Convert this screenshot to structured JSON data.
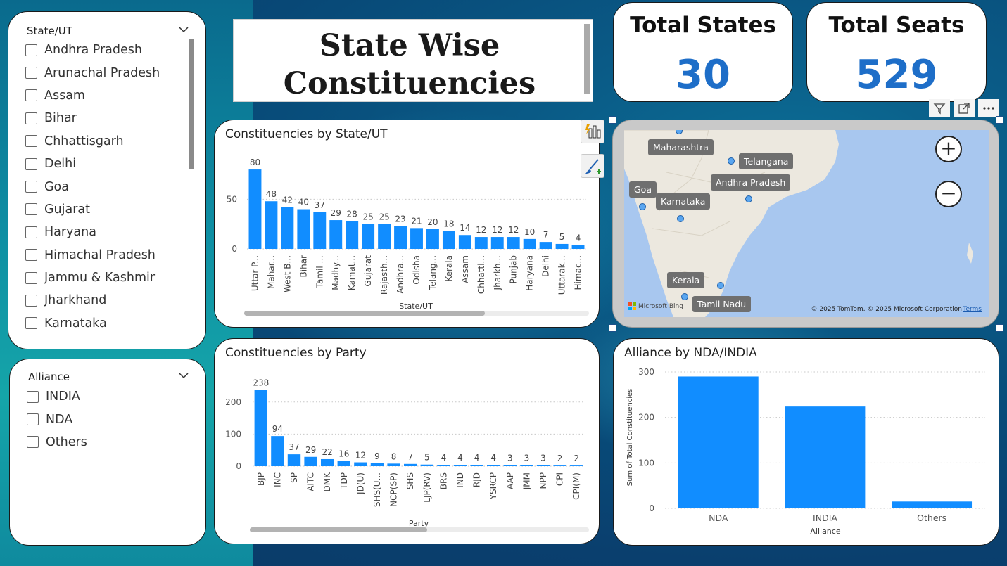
{
  "title": "State Wise Constituencies",
  "title_lines": [
    "State Wise",
    "Constituencies"
  ],
  "kpis": {
    "states": {
      "label": "Total States",
      "value": "30"
    },
    "seats": {
      "label": "Total Seats",
      "value": "529"
    }
  },
  "state_slicer": {
    "title": "State/UT",
    "items": [
      "Andhra Pradesh",
      "Arunachal Pradesh",
      "Assam",
      "Bihar",
      "Chhattisgarh",
      "Delhi",
      "Goa",
      "Gujarat",
      "Haryana",
      "Himachal Pradesh",
      "Jammu & Kashmir",
      "Jharkhand",
      "Karnataka"
    ]
  },
  "alliance_slicer": {
    "title": "Alliance",
    "items": [
      "INDIA",
      "NDA",
      "Others"
    ]
  },
  "map": {
    "labels": [
      "Maharashtra",
      "Telangana",
      "Andhra Pradesh",
      "Goa",
      "Karnataka",
      "Kerala",
      "Tamil Nadu"
    ],
    "copyright": "© 2025 TomTom, © 2025 Microsoft Corporation",
    "terms": "Terms",
    "logo": "Microsoft Bing"
  },
  "chart_data": [
    {
      "type": "bar",
      "title": "Constituencies by State/UT",
      "xlabel": "State/UT",
      "ylabel": "",
      "categories": [
        "Uttar P...",
        "Mahar...",
        "West B...",
        "Bihar",
        "Tamil ...",
        "Madhy...",
        "Kamat...",
        "Gujarat",
        "Rajasth...",
        "Andhra...",
        "Odisha",
        "Telang...",
        "Kerala",
        "Assam",
        "Chhatti...",
        "Jharkh...",
        "Punjab",
        "Haryana",
        "Delhi",
        "Uttarak...",
        "Himac..."
      ],
      "values": [
        80,
        48,
        42,
        40,
        37,
        29,
        28,
        25,
        25,
        23,
        21,
        20,
        18,
        14,
        12,
        12,
        12,
        10,
        7,
        5,
        4
      ],
      "yticks": [
        "0",
        "50"
      ],
      "ylim": [
        0,
        85
      ],
      "grid": true,
      "color": "#118dff"
    },
    {
      "type": "bar",
      "title": "Constituencies by Party",
      "xlabel": "Party",
      "ylabel": "",
      "categories": [
        "BJP",
        "INC",
        "SP",
        "AITC",
        "DMK",
        "TDP",
        "JD(U)",
        "SHS(U...",
        "NCP(SP)",
        "SHS",
        "LJP(RV)",
        "BRS",
        "IND",
        "RJD",
        "YSRCP",
        "AAP",
        "JMM",
        "NPP",
        "CPI",
        "CPI(M)"
      ],
      "values": [
        238,
        94,
        37,
        29,
        22,
        16,
        12,
        9,
        8,
        7,
        5,
        4,
        4,
        4,
        4,
        3,
        3,
        3,
        2,
        2
      ],
      "yticks": [
        "0",
        "100",
        "200"
      ],
      "ylim": [
        0,
        250
      ],
      "grid": true,
      "color": "#118dff"
    },
    {
      "type": "bar",
      "title": "Alliance by NDA/INDIA",
      "xlabel": "Alliance",
      "ylabel": "Sum of Total Constituencies",
      "categories": [
        "NDA",
        "INDIA",
        "Others"
      ],
      "values": [
        290,
        224,
        15
      ],
      "yticks": [
        "0",
        "100",
        "200",
        "300"
      ],
      "ylim": [
        0,
        300
      ],
      "grid": true,
      "color": "#118dff"
    }
  ]
}
